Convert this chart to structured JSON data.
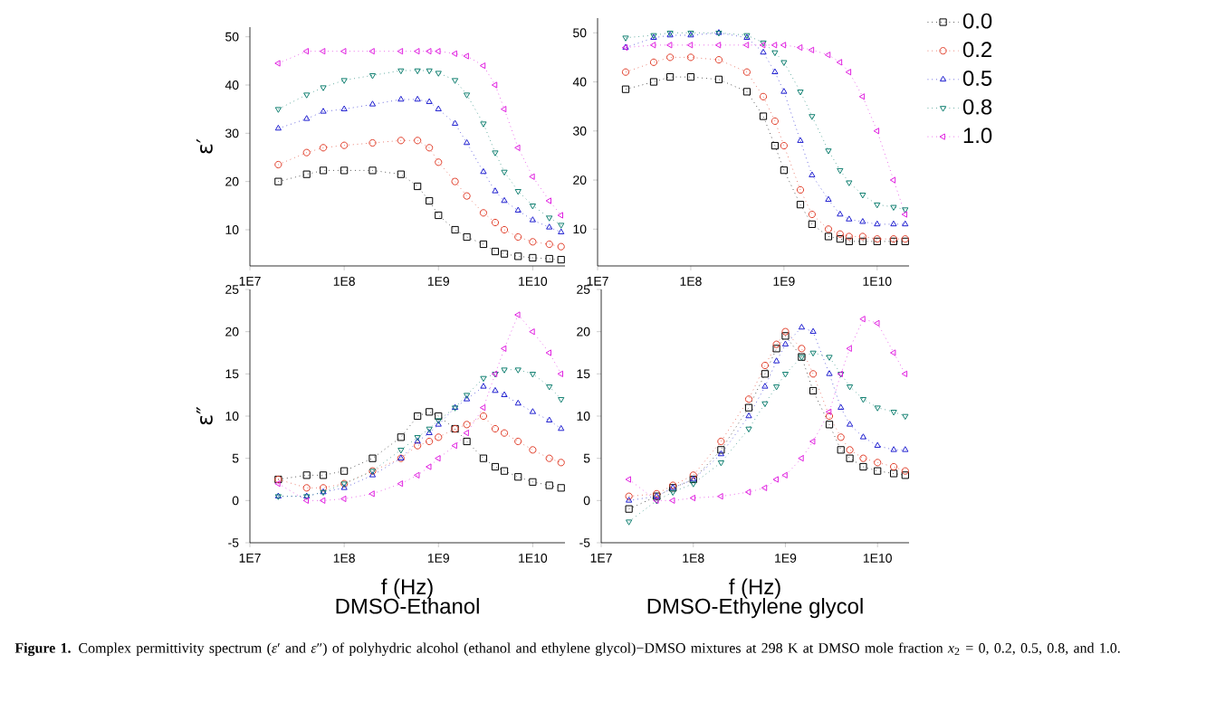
{
  "chart_data": [
    {
      "type": "line",
      "ylabel": "ε′",
      "log": "x",
      "line_style": "dotted",
      "xlim": [
        10000000,
        22000000000
      ],
      "xticks": [
        {
          "value": 10000000,
          "label": "1E7"
        },
        {
          "value": 100000000,
          "label": "1E8"
        },
        {
          "value": 1000000000,
          "label": "1E9"
        },
        {
          "value": 10000000000,
          "label": "1E10"
        }
      ],
      "ylim": [
        2.5,
        52
      ],
      "yticks": [
        10,
        20,
        30,
        40,
        50
      ],
      "x": [
        20000000,
        40000000,
        60000000,
        100000000,
        200000000,
        400000000,
        600000000,
        800000000,
        1000000000,
        1500000000,
        2000000000,
        3000000000,
        4000000000,
        5000000000,
        7000000000,
        10000000000,
        15000000000,
        20000000000
      ],
      "series": [
        {
          "color": "#000000",
          "marker": "square",
          "values": [
            20,
            21.5,
            22.3,
            22.3,
            22.3,
            21.5,
            19,
            16,
            13,
            10,
            8.5,
            7,
            5.5,
            5,
            4.5,
            4.2,
            4,
            3.8
          ]
        },
        {
          "color": "#e03c28",
          "marker": "circle",
          "values": [
            23.5,
            26,
            27,
            27.5,
            28,
            28.5,
            28.5,
            27,
            24,
            20,
            17,
            13.5,
            11.5,
            10,
            8.5,
            7.5,
            7,
            6.5
          ]
        },
        {
          "color": "#2020d0",
          "marker": "triangle",
          "values": [
            31,
            33,
            34.5,
            35,
            36,
            37,
            37,
            36.5,
            35,
            32,
            28,
            22,
            18,
            16,
            14,
            12,
            10.5,
            9.5
          ]
        },
        {
          "color": "#108070",
          "marker": "triangle-down",
          "values": [
            35,
            38,
            39.5,
            41,
            42,
            43,
            43,
            43,
            42.5,
            41,
            38,
            32,
            26,
            22,
            18,
            15,
            12.5,
            11
          ]
        },
        {
          "color": "#e020e0",
          "marker": "triangle-left",
          "values": [
            44.5,
            47,
            47,
            47,
            47,
            47,
            47,
            47,
            47,
            46.5,
            46,
            44,
            40,
            35,
            27,
            21,
            16,
            13
          ]
        }
      ]
    },
    {
      "type": "line",
      "log": "x",
      "line_style": "dotted",
      "legend": "right",
      "xlim": [
        10000000,
        22000000000
      ],
      "xticks": [
        {
          "value": 10000000,
          "label": "1E7"
        },
        {
          "value": 100000000,
          "label": "1E8"
        },
        {
          "value": 1000000000,
          "label": "1E9"
        },
        {
          "value": 10000000000,
          "label": "1E10"
        }
      ],
      "ylim": [
        2.5,
        53
      ],
      "yticks": [
        10,
        20,
        30,
        40,
        50
      ],
      "x": [
        20000000,
        40000000,
        60000000,
        100000000,
        200000000,
        400000000,
        600000000,
        800000000,
        1000000000,
        1500000000,
        2000000000,
        3000000000,
        4000000000,
        5000000000,
        7000000000,
        10000000000,
        15000000000,
        20000000000
      ],
      "series": [
        {
          "name": "0.0",
          "color": "#000000",
          "marker": "square",
          "values": [
            38.5,
            40,
            41,
            41,
            40.5,
            38,
            33,
            27,
            22,
            15,
            11,
            8.5,
            8,
            7.5,
            7.5,
            7.5,
            7.5,
            7.5
          ]
        },
        {
          "name": "0.2",
          "color": "#e03c28",
          "marker": "circle",
          "values": [
            42,
            44,
            45,
            45,
            44.5,
            42,
            37,
            32,
            27,
            18,
            13,
            10,
            9,
            8.5,
            8.5,
            8,
            8,
            8
          ]
        },
        {
          "name": "0.5",
          "color": "#2020d0",
          "marker": "triangle",
          "values": [
            47,
            49,
            49.5,
            49.5,
            50,
            49,
            46,
            42,
            38,
            28,
            21,
            16,
            13,
            12,
            11.5,
            11,
            11,
            11
          ]
        },
        {
          "name": "0.8",
          "color": "#108070",
          "marker": "triangle-down",
          "values": [
            49,
            49.5,
            50,
            50,
            50,
            49.5,
            48,
            46,
            44,
            38,
            33,
            26,
            22,
            19.5,
            17,
            15,
            14.5,
            14
          ]
        },
        {
          "name": "1.0",
          "color": "#e020e0",
          "marker": "triangle-left",
          "values": [
            47,
            47.5,
            47.5,
            47.5,
            47.5,
            47.5,
            47.5,
            47.5,
            47.5,
            47,
            46.5,
            45.5,
            44,
            42,
            37,
            30,
            20,
            13
          ]
        }
      ]
    },
    {
      "type": "line",
      "ylabel": "ε″",
      "xlabel": "f (Hz)",
      "annotations": [
        "DMSO-Ethanol"
      ],
      "log": "x",
      "line_style": "dotted",
      "xlim": [
        10000000,
        22000000000
      ],
      "xticks": [
        {
          "value": 10000000,
          "label": "1E7"
        },
        {
          "value": 100000000,
          "label": "1E8"
        },
        {
          "value": 1000000000,
          "label": "1E9"
        },
        {
          "value": 10000000000,
          "label": "1E10"
        }
      ],
      "ylim": [
        -5,
        25
      ],
      "yticks": [
        -5,
        0,
        5,
        10,
        15,
        20,
        25
      ],
      "x": [
        20000000,
        40000000,
        60000000,
        100000000,
        200000000,
        400000000,
        600000000,
        800000000,
        1000000000,
        1500000000,
        2000000000,
        3000000000,
        4000000000,
        5000000000,
        7000000000,
        10000000000,
        15000000000,
        20000000000
      ],
      "series": [
        {
          "color": "#000000",
          "marker": "square",
          "values": [
            2.5,
            3,
            3,
            3.5,
            5,
            7.5,
            10,
            10.5,
            10,
            8.5,
            7,
            5,
            4,
            3.5,
            2.8,
            2.2,
            1.8,
            1.5
          ]
        },
        {
          "color": "#e03c28",
          "marker": "circle",
          "values": [
            2.5,
            1.5,
            1.5,
            2,
            3.5,
            5,
            6.5,
            7,
            7.5,
            8.5,
            9,
            10,
            8.5,
            8,
            7,
            6,
            5,
            4.5
          ]
        },
        {
          "color": "#2020d0",
          "marker": "triangle",
          "values": [
            0.5,
            0.5,
            1,
            1.5,
            3,
            5,
            7,
            8,
            9,
            11,
            12,
            13.5,
            13,
            12.5,
            11.5,
            10.5,
            9.5,
            8.5
          ]
        },
        {
          "color": "#108070",
          "marker": "triangle-down",
          "values": [
            0.5,
            0.5,
            1,
            2,
            3.5,
            6,
            7.5,
            8.5,
            9.5,
            11,
            12.5,
            14.5,
            15,
            15.5,
            15.5,
            15,
            13.5,
            12
          ]
        },
        {
          "color": "#e020e0",
          "marker": "triangle-left",
          "values": [
            2,
            0,
            0,
            0.2,
            0.8,
            2,
            3,
            4,
            5,
            6.5,
            8,
            11,
            15,
            18,
            22,
            20,
            17.5,
            15
          ]
        }
      ]
    },
    {
      "type": "line",
      "xlabel": "f (Hz)",
      "annotations": [
        "DMSO-Ethylene glycol",
        "**Figure 1.** Complex permittivity spectrum (*ε*′ and *ε*″) of polyhydric alcohol (ethanol and ethylene glycol)−DMSO mixtures at 298 K at DMSO mole fraction *x*$_{2}$ = 0, 0.2, 0.5, 0.8, and 1.0."
      ],
      "log": "x",
      "line_style": "dotted",
      "xlim": [
        10000000,
        22000000000
      ],
      "xticks": [
        {
          "value": 10000000,
          "label": "1E7"
        },
        {
          "value": 100000000,
          "label": "1E8"
        },
        {
          "value": 1000000000,
          "label": "1E9"
        },
        {
          "value": 10000000000,
          "label": "1E10"
        }
      ],
      "ylim": [
        -5,
        25
      ],
      "yticks": [
        -5,
        0,
        5,
        10,
        15,
        20,
        25
      ],
      "x": [
        20000000,
        40000000,
        60000000,
        100000000,
        200000000,
        400000000,
        600000000,
        800000000,
        1000000000,
        1500000000,
        2000000000,
        3000000000,
        4000000000,
        5000000000,
        7000000000,
        10000000000,
        15000000000,
        20000000000
      ],
      "series": [
        {
          "color": "#000000",
          "marker": "square",
          "values": [
            -1,
            0.5,
            1.5,
            2.5,
            6,
            11,
            15,
            18,
            19.5,
            17,
            13,
            9,
            6,
            5,
            4,
            3.5,
            3.2,
            3
          ]
        },
        {
          "color": "#e03c28",
          "marker": "circle",
          "values": [
            0.5,
            0.8,
            1.8,
            3,
            7,
            12,
            16,
            18.5,
            20,
            18,
            15,
            10,
            7.5,
            6,
            5,
            4.5,
            4,
            3.5
          ]
        },
        {
          "color": "#2020d0",
          "marker": "triangle",
          "values": [
            0,
            0.5,
            1.5,
            2.5,
            5.5,
            10,
            13.5,
            16.5,
            18.5,
            20.5,
            20,
            15,
            11,
            9,
            7.5,
            6.5,
            6,
            6
          ]
        },
        {
          "color": "#108070",
          "marker": "triangle-down",
          "values": [
            -2.5,
            0,
            1,
            2,
            4.5,
            8.5,
            11.5,
            13.5,
            15,
            17,
            17.5,
            17,
            15,
            13.5,
            12,
            11,
            10.5,
            10
          ]
        },
        {
          "color": "#e020e0",
          "marker": "triangle-left",
          "values": [
            2.5,
            0,
            0,
            0.3,
            0.5,
            1,
            1.5,
            2.5,
            3,
            5,
            7,
            10.5,
            15,
            18,
            21.5,
            21,
            17.5,
            15
          ]
        }
      ]
    }
  ]
}
